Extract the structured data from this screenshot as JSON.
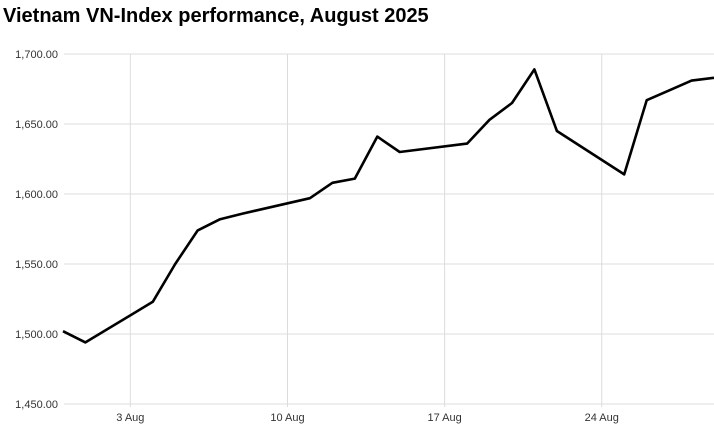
{
  "header": {
    "title": "Vietnam VN-Index performance, August 2025"
  },
  "chart_data": {
    "type": "line",
    "title": "Vietnam VN-Index performance, August 2025",
    "series_name": "VN-Index",
    "xlabel": "",
    "ylabel": "",
    "grid": true,
    "legend": false,
    "line_color": "#000000",
    "grid_color": "#dcdcdc",
    "label_color": "#333333",
    "background_color": "#ffffff",
    "x_range_days_from_jul31": [
      0,
      29
    ],
    "y_range": [
      1450,
      1700
    ],
    "x_ticks": [
      {
        "day": 3,
        "label": "3 Aug"
      },
      {
        "day": 10,
        "label": "10 Aug"
      },
      {
        "day": 17,
        "label": "17 Aug"
      },
      {
        "day": 24,
        "label": "24 Aug"
      }
    ],
    "y_ticks": [
      {
        "value": 1450,
        "label": "1,450.00"
      },
      {
        "value": 1500,
        "label": "1,500.00"
      },
      {
        "value": 1550,
        "label": "1,550.00"
      },
      {
        "value": 1600,
        "label": "1,600.00"
      },
      {
        "value": 1650,
        "label": "1,650.00"
      },
      {
        "value": 1700,
        "label": "1,700.00"
      }
    ],
    "points": [
      {
        "date": "31 Jul",
        "day": 0,
        "value": 1502
      },
      {
        "date": "1 Aug",
        "day": 1,
        "value": 1494
      },
      {
        "date": "4 Aug",
        "day": 4,
        "value": 1523
      },
      {
        "date": "5 Aug",
        "day": 5,
        "value": 1550
      },
      {
        "date": "6 Aug",
        "day": 6,
        "value": 1574
      },
      {
        "date": "7 Aug",
        "day": 7,
        "value": 1582
      },
      {
        "date": "8 Aug",
        "day": 8,
        "value": 1586
      },
      {
        "date": "11 Aug",
        "day": 11,
        "value": 1597
      },
      {
        "date": "12 Aug",
        "day": 12,
        "value": 1608
      },
      {
        "date": "13 Aug",
        "day": 13,
        "value": 1611
      },
      {
        "date": "14 Aug",
        "day": 14,
        "value": 1641
      },
      {
        "date": "15 Aug",
        "day": 15,
        "value": 1630
      },
      {
        "date": "18 Aug",
        "day": 18,
        "value": 1636
      },
      {
        "date": "19 Aug",
        "day": 19,
        "value": 1653
      },
      {
        "date": "20 Aug",
        "day": 20,
        "value": 1665
      },
      {
        "date": "21 Aug",
        "day": 21,
        "value": 1689
      },
      {
        "date": "22 Aug",
        "day": 22,
        "value": 1645
      },
      {
        "date": "25 Aug",
        "day": 25,
        "value": 1614
      },
      {
        "date": "26 Aug",
        "day": 26,
        "value": 1667
      },
      {
        "date": "27 Aug",
        "day": 27,
        "value": 1674
      },
      {
        "date": "28 Aug",
        "day": 28,
        "value": 1681
      },
      {
        "date": "29 Aug",
        "day": 29,
        "value": 1683
      }
    ]
  }
}
